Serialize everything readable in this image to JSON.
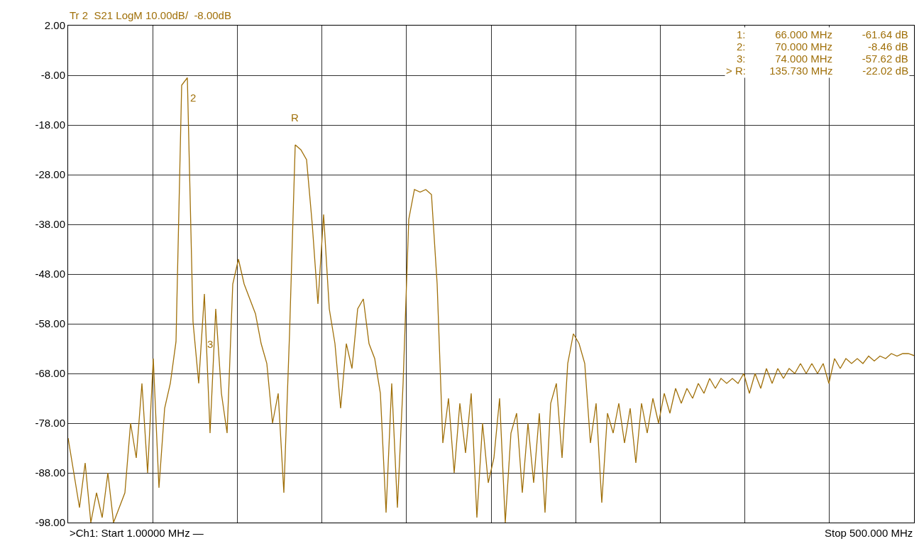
{
  "chart_data": {
    "type": "line",
    "title": "Tr 2  S21 LogM 10.00dB/  -8.00dB",
    "categories": [
      null,
      null,
      null,
      null,
      null,
      null,
      null,
      null,
      null,
      null,
      null,
      null,
      null,
      null,
      null,
      null,
      null,
      null,
      null,
      null,
      null,
      null,
      null,
      null,
      null,
      null,
      null,
      null,
      null,
      null,
      null,
      null,
      null,
      null,
      null,
      null,
      null,
      null,
      null,
      null,
      null,
      null,
      null,
      null,
      null,
      null,
      null,
      null,
      null,
      null,
      null,
      null,
      null,
      null,
      null,
      null,
      null,
      null,
      null,
      null,
      null,
      null,
      null,
      null,
      null,
      null,
      null,
      null,
      null,
      null,
      null,
      null,
      null,
      null,
      null,
      null,
      null,
      null,
      null,
      null,
      null,
      null,
      null,
      null,
      null,
      null,
      null,
      null,
      null,
      null,
      null,
      null,
      null,
      null,
      null,
      null,
      null,
      null,
      null,
      null,
      null,
      null,
      null,
      null,
      null,
      null,
      null,
      null,
      null,
      null,
      null,
      null,
      null,
      null,
      null,
      null,
      null,
      null,
      null,
      null,
      null,
      null,
      null,
      null,
      null,
      null,
      null,
      null,
      null,
      null,
      null,
      null,
      null,
      null,
      null,
      null,
      null,
      null,
      null,
      null,
      null,
      null,
      null,
      null,
      null,
      null,
      null,
      null,
      null,
      null
    ],
    "ylim": [
      -98,
      2
    ],
    "yticks": [
      {
        "value": 2,
        "label": "2.00"
      },
      {
        "value": -8,
        "label": "-8.00"
      },
      {
        "value": -18,
        "label": "-18.00"
      },
      {
        "value": -28,
        "label": "-28.00"
      },
      {
        "value": -38,
        "label": "-38.00"
      },
      {
        "value": -48,
        "label": "-48.00"
      },
      {
        "value": -58,
        "label": "-58.00"
      },
      {
        "value": -68,
        "label": "-68.00"
      },
      {
        "value": -78,
        "label": "-78.00"
      },
      {
        "value": -88,
        "label": "-88.00"
      },
      {
        "value": -98,
        "label": "-98.00"
      }
    ],
    "grid": true,
    "tick_labels": "y",
    "series": [
      {
        "color": "#a0700a",
        "values": [
          -81,
          -88,
          -95,
          -86,
          -98,
          -92,
          -97,
          -88,
          -98,
          -95,
          -92,
          -78,
          -85,
          -70,
          -88,
          -65,
          -91,
          -75,
          -70,
          -61.6,
          -10,
          -8.5,
          -57.6,
          -70,
          -52,
          -80,
          -55,
          -72,
          -80,
          -50,
          -45,
          -50,
          -53,
          -56,
          -62,
          -66,
          -78,
          -72,
          -92,
          -60,
          -22,
          -23,
          -25,
          -38,
          -54,
          -36,
          -55,
          -62,
          -75,
          -62,
          -67,
          -55,
          -53,
          -62,
          -65,
          -72,
          -96,
          -70,
          -95,
          -70,
          -37,
          -31,
          -31.5,
          -31,
          -32,
          -50,
          -82,
          -73,
          -88,
          -74,
          -84,
          -72,
          -97,
          -78,
          -90,
          -85,
          -73,
          -98,
          -80,
          -76,
          -92,
          -78,
          -90,
          -76,
          -96,
          -74,
          -70,
          -85,
          -66,
          -60,
          -62,
          -66,
          -82,
          -74,
          -94,
          -76,
          -80,
          -74,
          -82,
          -75,
          -86,
          -74,
          -80,
          -73,
          -78,
          -72,
          -76,
          -71,
          -74,
          -71,
          -73,
          -70,
          -72,
          -69,
          -71,
          -69,
          -70,
          -69,
          -70,
          -68,
          -72,
          -68,
          -71,
          -67,
          -70,
          -67,
          -69,
          -67,
          -68,
          -66,
          -68,
          -66,
          -68,
          -66,
          -70,
          -65,
          -67,
          -65,
          -66,
          -65,
          -66,
          -64.5,
          -65.5,
          -64.5,
          -65,
          -64,
          -64.5,
          -64,
          -64,
          -64.4
        ]
      }
    ],
    "annotations": [
      ">Ch1: Start 1.00000 MHz —",
      "Stop 500.000 MHz",
      "1:          66.000 MHz          -61.64 dB",
      "2:          70.000 MHz            -8.46 dB",
      "3:          74.000 MHz          -57.62 dB",
      "> R:        135.730 MHz          -22.02 dB",
      "2",
      "3",
      "R"
    ]
  }
}
